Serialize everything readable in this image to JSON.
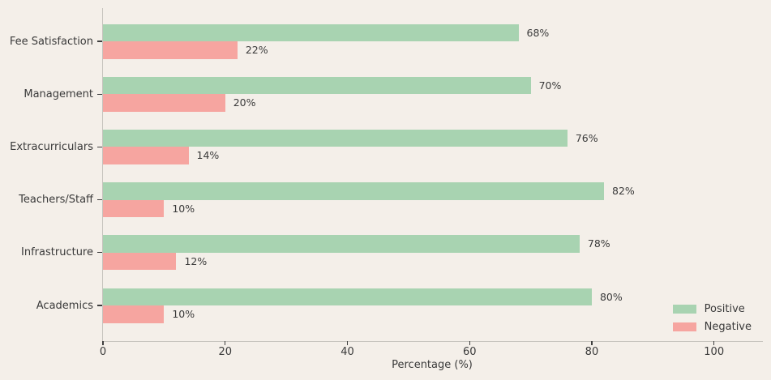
{
  "figure": {
    "background": "#f4efe9",
    "text_color": "#3a3a3a",
    "spine_color": "#c7c4be"
  },
  "chart_data": {
    "type": "bar",
    "orientation": "horizontal",
    "title": "",
    "categories": [
      "Fee Satisfaction",
      "Management",
      "Extracurriculars",
      "Teachers/Staff",
      "Infrastructure",
      "Academics"
    ],
    "series": [
      {
        "name": "Positive",
        "color": "#a8d3b1",
        "values": [
          68,
          70,
          76,
          82,
          78,
          80
        ],
        "value_labels": [
          "68%",
          "70%",
          "76%",
          "82%",
          "78%",
          "80%"
        ]
      },
      {
        "name": "Negative",
        "color": "#f6a5a0",
        "values": [
          22,
          20,
          14,
          10,
          12,
          10
        ],
        "value_labels": [
          "22%",
          "20%",
          "14%",
          "10%",
          "12%",
          "10%"
        ]
      }
    ],
    "xlabel": "Percentage (%)",
    "ylabel": "",
    "xlim": [
      0,
      108
    ],
    "xticks": [
      "0",
      "20",
      "40",
      "60",
      "80",
      "100"
    ],
    "xtick_values": [
      0,
      20,
      40,
      60,
      80,
      100
    ],
    "grid": false,
    "legend": {
      "position": "lower-right"
    }
  }
}
